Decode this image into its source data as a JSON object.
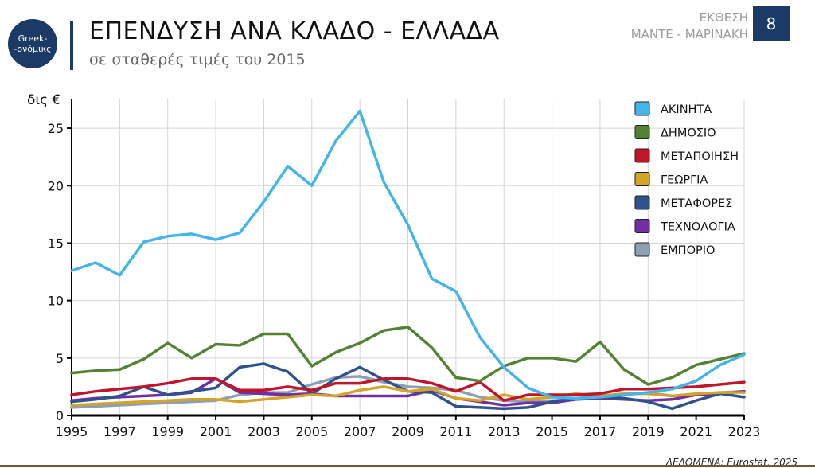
{
  "logo": {
    "line1": "Greek-",
    "line2": "-ονόμικς"
  },
  "header": {
    "title": "ΕΠΕΝΔΥΣΗ ΑΝΑ ΚΛΑΔΟ - ΕΛΛΑΔΑ",
    "subtitle": "σε σταθερές τιμές του 2015",
    "report_line1": "ΕΚΘΕΣΗ",
    "report_line2": "ΜΑΝΤΕ - ΜΑΡΙΝΑΚΗ",
    "page_number": "8"
  },
  "source": "ΔΕΔΟΜΕΝΑ: Eurostat, 2025",
  "chart_data": {
    "type": "line",
    "title": "ΕΠΕΝΔΥΣΗ ΑΝΑ ΚΛΑΔΟ - ΕΛΛΑΔΑ",
    "ylabel": "δις €",
    "xlabel": "",
    "x": [
      1995,
      1996,
      1997,
      1998,
      1999,
      2000,
      2001,
      2002,
      2003,
      2004,
      2005,
      2006,
      2007,
      2008,
      2009,
      2010,
      2011,
      2012,
      2013,
      2014,
      2015,
      2016,
      2017,
      2018,
      2019,
      2020,
      2021,
      2022,
      2023
    ],
    "xlim": [
      1995,
      2023
    ],
    "ylim": [
      0,
      27.5
    ],
    "x_ticks": [
      1995,
      1997,
      1999,
      2001,
      2003,
      2005,
      2007,
      2009,
      2011,
      2013,
      2015,
      2017,
      2019,
      2021,
      2023
    ],
    "y_ticks": [
      0,
      5,
      10,
      15,
      20,
      25
    ],
    "grid": true,
    "legend_position": "top-right",
    "series": [
      {
        "name": "ΑΚΙΝΗΤΑ",
        "color": "#45b4e8",
        "values": [
          12.6,
          13.3,
          12.2,
          15.1,
          15.6,
          15.8,
          15.3,
          15.9,
          18.6,
          21.7,
          20.0,
          23.9,
          26.5,
          20.3,
          16.6,
          11.9,
          10.8,
          6.8,
          4.2,
          2.4,
          1.6,
          1.5,
          1.6,
          1.8,
          2.0,
          2.3,
          3.0,
          4.4,
          5.3
        ]
      },
      {
        "name": "ΔΗΜΟΣΙΟ",
        "color": "#548235",
        "values": [
          3.7,
          3.9,
          4.0,
          4.9,
          6.3,
          5.0,
          6.2,
          6.1,
          7.1,
          7.1,
          4.3,
          5.5,
          6.3,
          7.4,
          7.7,
          5.9,
          3.3,
          3.0,
          4.3,
          5.0,
          5.0,
          4.7,
          6.4,
          4.0,
          2.7,
          3.3,
          4.4,
          4.9,
          5.4
        ]
      },
      {
        "name": "ΜΕΤΑΠΟΙΗΣΗ",
        "color": "#c0162c",
        "values": [
          1.8,
          2.1,
          2.3,
          2.5,
          2.8,
          3.2,
          3.2,
          2.2,
          2.2,
          2.5,
          2.2,
          2.8,
          2.8,
          3.2,
          3.2,
          2.8,
          2.1,
          2.9,
          1.3,
          1.8,
          1.8,
          1.8,
          1.9,
          2.3,
          2.3,
          2.4,
          2.5,
          2.7,
          2.9
        ]
      },
      {
        "name": "ΓΕΩΡΓΙΑ",
        "color": "#d4a32a",
        "values": [
          0.9,
          1.0,
          1.1,
          1.2,
          1.3,
          1.4,
          1.4,
          1.2,
          1.4,
          1.6,
          1.8,
          1.7,
          2.2,
          2.5,
          2.1,
          2.3,
          1.5,
          1.3,
          1.8,
          1.4,
          1.6,
          1.9,
          1.7,
          1.9,
          1.9,
          1.7,
          1.9,
          2.0,
          2.0
        ]
      },
      {
        "name": "ΜΕΤΑΦΟΡΕΣ",
        "color": "#2e5289",
        "values": [
          1.2,
          1.4,
          1.7,
          2.5,
          1.8,
          2.1,
          2.4,
          4.2,
          4.5,
          3.8,
          1.9,
          3.2,
          4.2,
          3.1,
          2.1,
          2.0,
          0.8,
          0.7,
          0.6,
          0.7,
          1.2,
          1.5,
          1.6,
          1.5,
          1.2,
          0.6,
          1.3,
          1.9,
          1.6
        ]
      },
      {
        "name": "ΤΕΧΝΟΛΟΓΙΑ",
        "color": "#7030a0",
        "values": [
          1.3,
          1.5,
          1.6,
          1.7,
          1.8,
          2.0,
          3.2,
          2.0,
          1.9,
          1.8,
          1.9,
          1.7,
          1.7,
          1.7,
          1.7,
          2.2,
          1.5,
          1.2,
          0.9,
          1.1,
          1.1,
          1.4,
          1.5,
          1.4,
          1.3,
          1.4,
          1.8,
          1.9,
          2.1
        ]
      },
      {
        "name": "ΕΜΠΟΡΙΟ",
        "color": "#8f9fb3",
        "values": [
          0.7,
          0.8,
          0.9,
          1.0,
          1.1,
          1.2,
          1.3,
          1.8,
          2.0,
          2.0,
          2.7,
          3.3,
          3.4,
          2.9,
          2.5,
          2.4,
          2.2,
          1.6,
          1.3,
          1.2,
          1.3,
          1.4,
          1.5,
          1.8,
          2.0,
          1.7,
          1.8,
          2.0,
          2.1
        ]
      }
    ]
  }
}
